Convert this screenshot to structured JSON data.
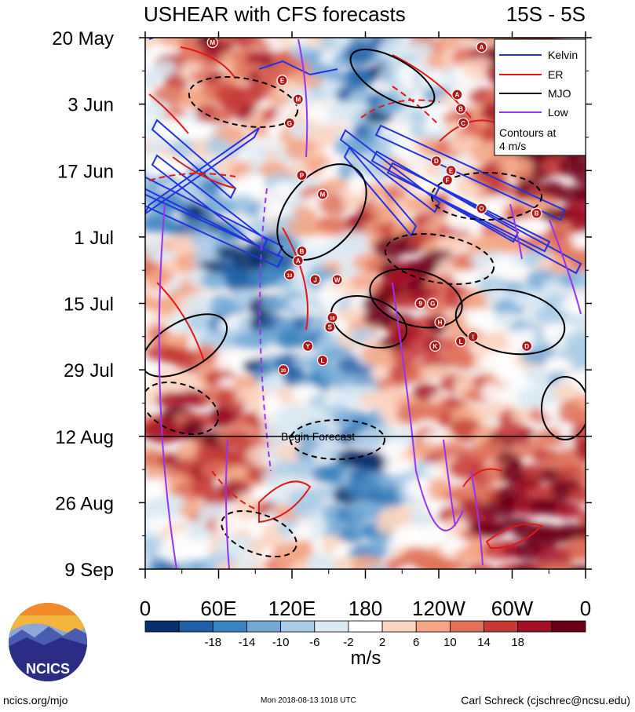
{
  "chart_data": {
    "type": "heatmap",
    "title": "USHEAR with CFS forecasts",
    "subtitle": "15S - 5S",
    "x_axis": {
      "ticks": [
        "0",
        "60E",
        "120E",
        "180",
        "120W",
        "60W",
        "0"
      ],
      "range_deg_east": [
        0,
        360
      ]
    },
    "y_axis": {
      "ticks": [
        "20 May",
        "3 Jun",
        "17 Jun",
        "1 Jul",
        "15 Jul",
        "29 Jul",
        "12 Aug",
        "26 Aug",
        "9 Sep"
      ],
      "inverted": true
    },
    "forecast_line": {
      "date": "12 Aug",
      "label": "Begin Forecast"
    },
    "colorbar": {
      "ticks": [
        "-18",
        "-14",
        "-10",
        "-6",
        "-2",
        "2",
        "6",
        "10",
        "14",
        "18"
      ],
      "unit": "m/s",
      "colors": [
        "#08306b",
        "#1f5fa8",
        "#3c84c0",
        "#72a9d6",
        "#a9cde8",
        "#d9eaf5",
        "#ffffff",
        "#fbd5c0",
        "#f4a582",
        "#e07059",
        "#c63a35",
        "#a30f25",
        "#6d0019"
      ]
    },
    "legend": {
      "placement": "top-right",
      "entries": [
        {
          "name": "Kelvin",
          "color": "#2233dd"
        },
        {
          "name": "ER",
          "color": "#e01818"
        },
        {
          "name": "MJO",
          "color": "#000000"
        },
        {
          "name": "Low",
          "color": "#9933ee"
        }
      ],
      "note_line1": "Contours at",
      "note_line2": "4 m/s"
    },
    "storm_markers": [
      {
        "label": "M",
        "lon": 55,
        "day": 1
      },
      {
        "label": "A",
        "lon": 275,
        "day": 2
      },
      {
        "label": "E",
        "lon": 112,
        "day": 9
      },
      {
        "label": "A",
        "lon": 255,
        "day": 12
      },
      {
        "label": "M",
        "lon": 125,
        "day": 13
      },
      {
        "label": "B",
        "lon": 258,
        "day": 15
      },
      {
        "label": "G",
        "lon": 118,
        "day": 18
      },
      {
        "label": "C",
        "lon": 260,
        "day": 18
      },
      {
        "label": "D",
        "lon": 238,
        "day": 26
      },
      {
        "label": "E",
        "lon": 250,
        "day": 28
      },
      {
        "label": "F",
        "lon": 247,
        "day": 30
      },
      {
        "label": "P",
        "lon": 128,
        "day": 29
      },
      {
        "label": "M",
        "lon": 145,
        "day": 33
      },
      {
        "label": "O",
        "lon": 275,
        "day": 36
      },
      {
        "label": "B",
        "lon": 320,
        "day": 37
      },
      {
        "label": "B",
        "lon": 128,
        "day": 45
      },
      {
        "label": "A",
        "lon": 125,
        "day": 47
      },
      {
        "label": "10",
        "lon": 118,
        "day": 50
      },
      {
        "label": "J",
        "lon": 139,
        "day": 51
      },
      {
        "label": "W",
        "lon": 157,
        "day": 51
      },
      {
        "label": "9",
        "lon": 225,
        "day": 56
      },
      {
        "label": "G",
        "lon": 235,
        "day": 56
      },
      {
        "label": "16",
        "lon": 153,
        "day": 59
      },
      {
        "label": "H",
        "lon": 241,
        "day": 60
      },
      {
        "label": "S",
        "lon": 151,
        "day": 61
      },
      {
        "label": "L",
        "lon": 258,
        "day": 64
      },
      {
        "label": "I",
        "lon": 268,
        "day": 63
      },
      {
        "label": "K",
        "lon": 237,
        "day": 65
      },
      {
        "label": "Y",
        "lon": 133,
        "day": 65
      },
      {
        "label": "D",
        "lon": 312,
        "day": 65
      },
      {
        "label": "L",
        "lon": 145,
        "day": 68
      },
      {
        "label": "20",
        "lon": 113,
        "day": 70
      }
    ]
  },
  "footer": {
    "left": "ncics.org/mjo",
    "middle": "Mon 2018-08-13 1018 UTC",
    "right": "Carl Schreck (cjschrec@ncsu.edu)"
  },
  "logo": {
    "text": "NCICS"
  }
}
